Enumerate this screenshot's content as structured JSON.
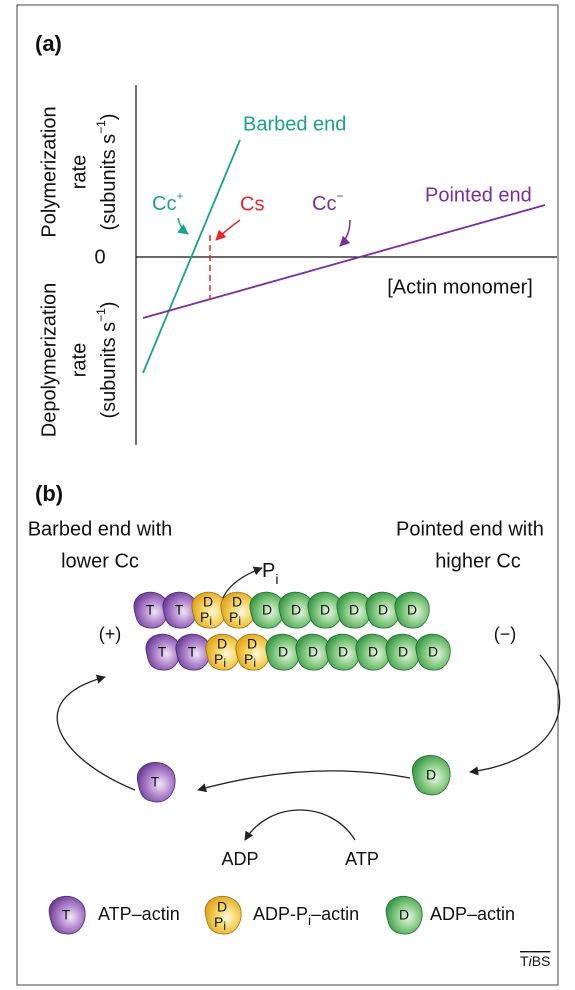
{
  "panel_a": {
    "label": "(a)",
    "y_upper": {
      "line1": "Polymerization",
      "line2": "rate",
      "line3": "(subunits s",
      "sup": "−1",
      "close": ")"
    },
    "y_lower": {
      "line1": "Depolymerization",
      "line2": "rate",
      "line3": "(subunits s",
      "sup": "−1",
      "close": ")"
    },
    "zero": "0",
    "x_axis": "[Actin monomer]",
    "barbed_end": "Barbed end",
    "pointed_end": "Pointed end",
    "cc_plus": {
      "text": "Cc",
      "sup": "+"
    },
    "cs": "Cs",
    "cc_minus": {
      "text": "Cc",
      "sup": "−"
    }
  },
  "panel_b": {
    "label": "(b)",
    "barbed_caption": [
      "Barbed end with",
      "lower Cc"
    ],
    "pointed_caption": [
      "Pointed end with",
      "higher Cc"
    ],
    "pi": {
      "text": "P",
      "sub": "i"
    },
    "plus_end": "(+)",
    "minus_end": "(−)",
    "adp": "ADP",
    "atp": "ATP",
    "subunit": {
      "atp": "T",
      "adp": "D",
      "pi": "P",
      "pi_sub": "i"
    }
  },
  "legend": [
    {
      "label": "ATP–actin"
    },
    {
      "label": "ADP-P",
      "sub": "i",
      "end": "–actin"
    },
    {
      "label": "ADP–actin"
    }
  ],
  "footer": {
    "t": "T",
    "i": "i",
    "bs": "BS"
  }
}
